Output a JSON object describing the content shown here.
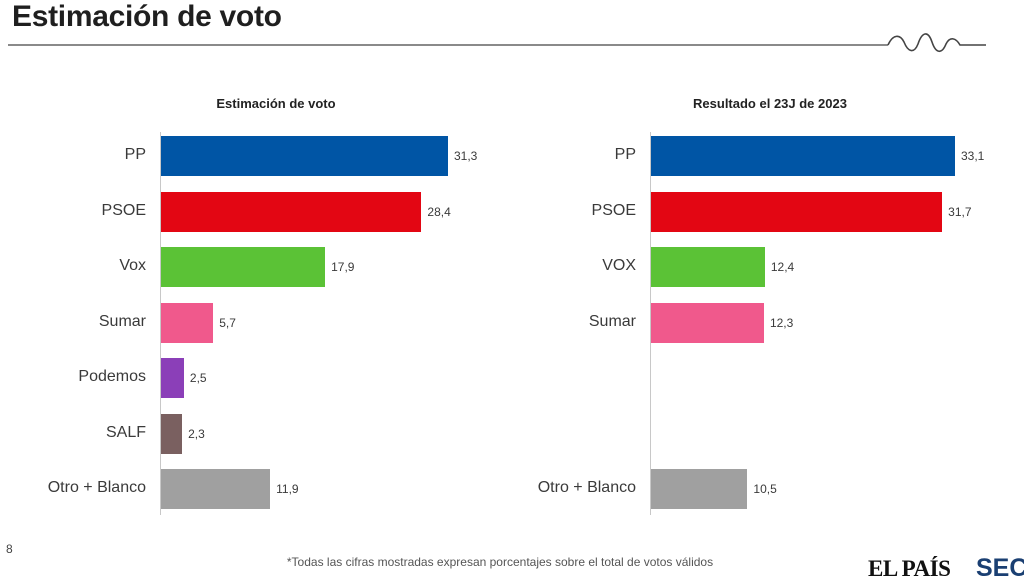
{
  "page": {
    "title": "Estimación de voto",
    "page_number": "8",
    "footnote": "*Todas las cifras mostradas expresan porcentajes sobre el total de votos válidos",
    "logo_text": "EL PAÍS",
    "logo2_text": "SEC",
    "accent_color": "#444444"
  },
  "chart_data": [
    {
      "type": "bar",
      "orientation": "horizontal",
      "title": "Estimación de voto",
      "categories": [
        "PP",
        "PSOE",
        "Vox",
        "Sumar",
        "Podemos",
        "SALF",
        "Otro + Blanco"
      ],
      "values": [
        31.3,
        28.4,
        17.9,
        5.7,
        2.5,
        2.3,
        11.9
      ],
      "value_labels": [
        "31,3",
        "28,4",
        "17,9",
        "5,7",
        "2,5",
        "2,3",
        "11,9"
      ],
      "colors": [
        "#0055a5",
        "#e30613",
        "#5bc236",
        "#f0598c",
        "#8b3fb8",
        "#7a6060",
        "#a0a0a0"
      ],
      "xlim": [
        0,
        40
      ]
    },
    {
      "type": "bar",
      "orientation": "horizontal",
      "title": "Resultado el 23J de 2023",
      "categories": [
        "PP",
        "PSOE",
        "VOX",
        "Sumar",
        "",
        "",
        "Otro + Blanco"
      ],
      "values": [
        33.1,
        31.7,
        12.4,
        12.3,
        null,
        null,
        10.5
      ],
      "value_labels": [
        "33,1",
        "31,7",
        "12,4",
        "12,3",
        "",
        "",
        "10,5"
      ],
      "colors": [
        "#0055a5",
        "#e30613",
        "#5bc236",
        "#f0598c",
        "#8b3fb8",
        "#7a6060",
        "#a0a0a0"
      ],
      "xlim": [
        0,
        40
      ]
    }
  ]
}
